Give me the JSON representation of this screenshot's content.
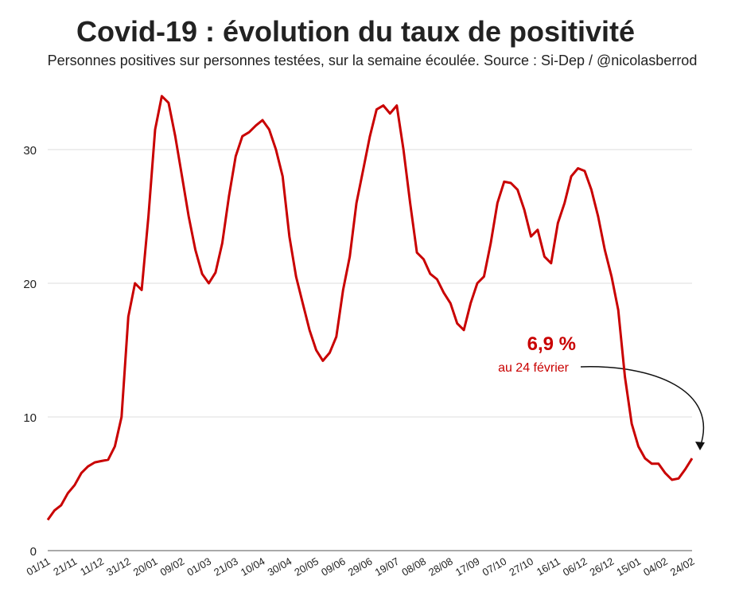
{
  "chart_data": {
    "type": "line",
    "title": "Covid-19 : évolution du taux de positivité",
    "subtitle": "Personnes positives sur personnes testées, sur la semaine écoulée. Source : Si-Dep / @nicolasberrod",
    "categories": [
      "01/11",
      null,
      null,
      null,
      "21/11",
      null,
      null,
      null,
      "11/12",
      null,
      null,
      null,
      "31/12",
      null,
      null,
      null,
      "20/01",
      null,
      null,
      null,
      "09/02",
      null,
      null,
      null,
      "01/03",
      null,
      null,
      null,
      "21/03",
      null,
      null,
      null,
      "10/04",
      null,
      null,
      null,
      "30/04",
      null,
      null,
      null,
      "20/05",
      null,
      null,
      null,
      "09/06",
      null,
      null,
      null,
      "29/06",
      null,
      null,
      null,
      "19/07",
      null,
      null,
      null,
      "08/08",
      null,
      null,
      null,
      "28/08",
      null,
      null,
      null,
      "17/09",
      null,
      null,
      null,
      "07/10",
      null,
      null,
      null,
      "27/10",
      null,
      null,
      null,
      "16/11",
      null,
      null,
      null,
      "06/12",
      null,
      null,
      null,
      "26/12",
      null,
      null,
      null,
      "15/01",
      null,
      null,
      null,
      "04/02",
      null,
      null,
      null,
      "24/02"
    ],
    "series": [
      {
        "color": "#c90000",
        "values": [
          2.3,
          3.0,
          3.4,
          4.3,
          4.9,
          5.8,
          6.3,
          6.6,
          6.7,
          6.8,
          7.8,
          10,
          17.5,
          20,
          19.5,
          25,
          31.5,
          34,
          33.5,
          31,
          28,
          25,
          22.5,
          20.7,
          20,
          20.8,
          23,
          26.5,
          29.5,
          31,
          31.3,
          31.8,
          32.2,
          31.5,
          30,
          28,
          23.5,
          20.5,
          18.5,
          16.5,
          15,
          14.2,
          14.8,
          16,
          19.5,
          22,
          26,
          28.5,
          31,
          33,
          33.3,
          32.7,
          33.3,
          30,
          26,
          22.3,
          21.8,
          20.7,
          20.3,
          19.3,
          18.5,
          17,
          16.5,
          18.5,
          20,
          20.5,
          23,
          26,
          27.6,
          27.5,
          27,
          25.5,
          23.5,
          24,
          22,
          21.5,
          24.5,
          26,
          28,
          28.6,
          28.4,
          27,
          25,
          22.5,
          20.5,
          18,
          13,
          9.5,
          7.8,
          6.9,
          6.5,
          6.5,
          5.8,
          5.3,
          5.4,
          6.1,
          6.9
        ]
      }
    ],
    "ylim": [
      0,
      35
    ],
    "yticks": [
      0,
      10,
      20,
      30
    ],
    "grid": true,
    "annotations": [
      "6,9 %",
      "au 24 février"
    ]
  }
}
